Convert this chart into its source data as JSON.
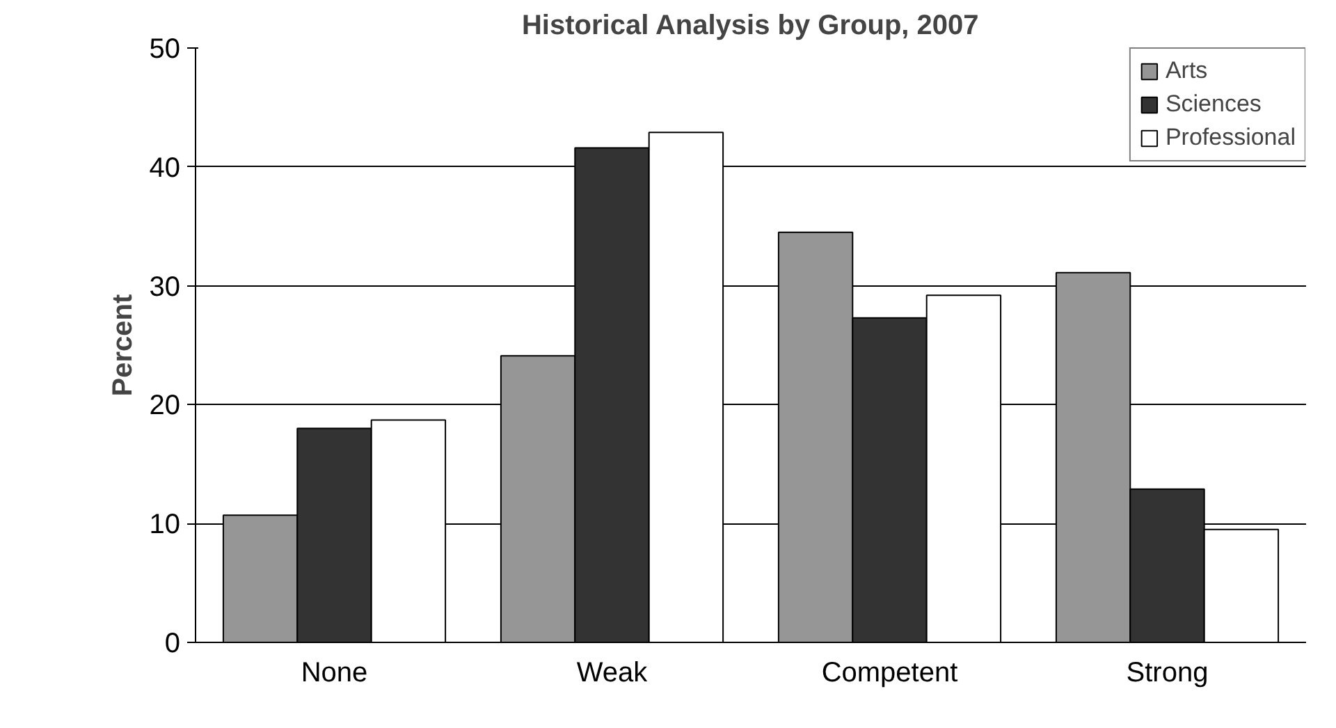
{
  "chart_data": {
    "type": "bar",
    "title": "Historical Analysis by Group, 2007",
    "ylabel": "Percent",
    "categories": [
      "None",
      "Weak",
      "Competent",
      "Strong"
    ],
    "series": [
      {
        "name": "Arts",
        "color": "#969696",
        "values": [
          10.7,
          24.1,
          34.5,
          31.1
        ]
      },
      {
        "name": "Sciences",
        "color": "#333333",
        "values": [
          18.0,
          41.6,
          27.3,
          12.9
        ]
      },
      {
        "name": "Professional",
        "color": "#ffffff",
        "values": [
          18.7,
          42.9,
          29.2,
          9.5
        ]
      }
    ],
    "ylim": [
      0,
      50
    ],
    "yticks": [
      0,
      10,
      20,
      30,
      40,
      50
    ],
    "grid": "y",
    "legend": "top right"
  }
}
